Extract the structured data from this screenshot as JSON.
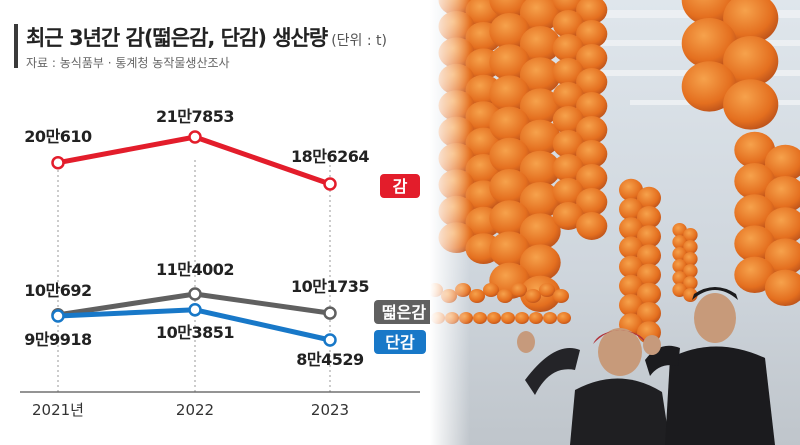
{
  "header": {
    "title": "최근 3년간 감(떫은감, 단감) 생산량",
    "unit": "(단위 : t)",
    "source": "자료 : 농식품부 · 통계청 농작물생산조사"
  },
  "chart_data": {
    "type": "line",
    "categories": [
      "2021년",
      "2022",
      "2023"
    ],
    "series": [
      {
        "name": "감",
        "values": [
          200610,
          217853,
          186264
        ],
        "labels": [
          "20만610",
          "21만7853",
          "18만6264"
        ],
        "color": "#e31d2b"
      },
      {
        "name": "떫은감",
        "values": [
          100692,
          114002,
          101735
        ],
        "labels": [
          "10만692",
          "11만4002",
          "10만1735"
        ],
        "color": "#606060"
      },
      {
        "name": "단감",
        "values": [
          99918,
          103851,
          84529
        ],
        "labels": [
          "9만9918",
          "10만3851",
          "8만4529"
        ],
        "color": "#1878c8"
      }
    ],
    "grid": false,
    "legend": "right"
  },
  "photo": {
    "description_icon": "persimmon-drying-photo-icon",
    "colors": {
      "persimmon": "#e8772a",
      "ceiling": "#e9edf0",
      "jacket": "#1c1c1e"
    }
  }
}
